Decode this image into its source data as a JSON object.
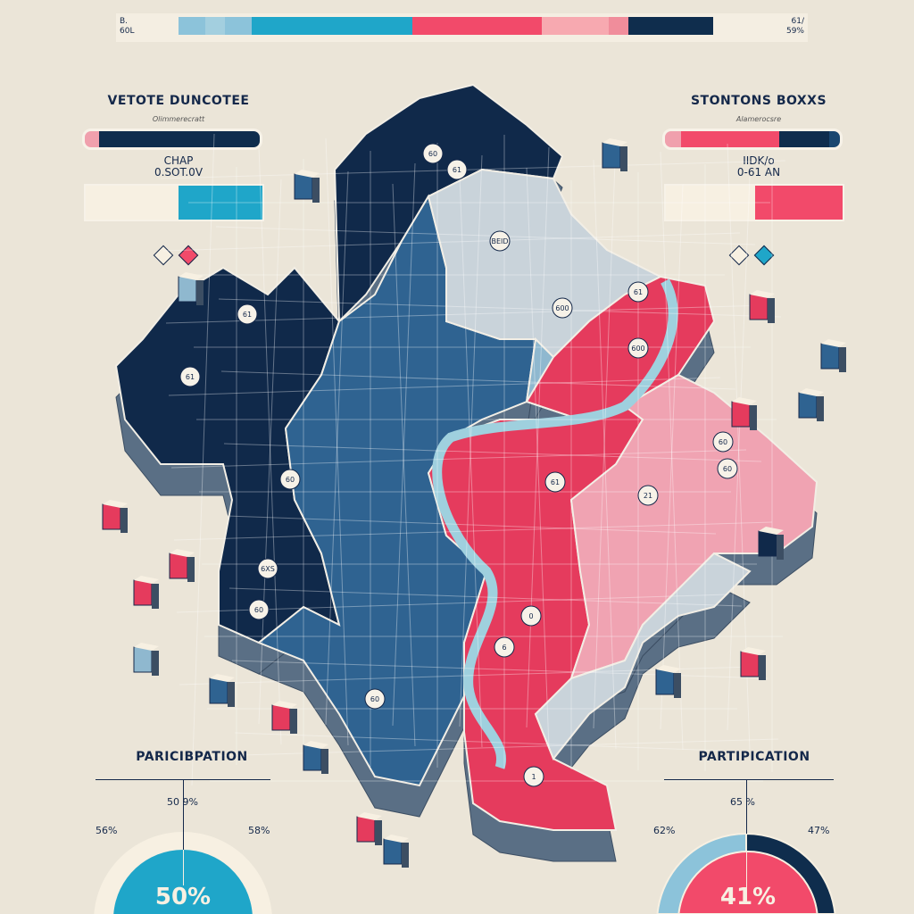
{
  "top_scale": {
    "left_label": [
      "B.",
      "60L"
    ],
    "right_label": [
      "61/",
      "59%"
    ],
    "segments": [
      "#8cc3da",
      "#a3cfdf",
      "#8cc3da",
      "#1fa6c9",
      "#f24a6a",
      "#f7a9b0",
      "#f08d9b",
      "#0f2d4d"
    ]
  },
  "left_panel": {
    "title": "VETOTE DUNCOTEE",
    "subtitle": "Olimmerecratt",
    "pill_colors": [
      "#f0a0ad",
      "#0f2d4d"
    ],
    "label_line1": "CHAP",
    "label_line2": "0.SOT.0V",
    "box_colors": [
      "#f7f0e2",
      "#1fa6c9"
    ],
    "diamonds": [
      "#f7f0e2",
      "#f24a6a"
    ]
  },
  "right_panel": {
    "title": "STONTONS BOXXS",
    "subtitle": "Alamerocsre",
    "pill_colors": [
      "#f0a0ad",
      "#f24a6a",
      "#0f2d4d",
      "#1a4770"
    ],
    "label_line1": "IIDK/o",
    "label_line2": "0-61 AN",
    "box_colors": [
      "#f7f0e2",
      "#f24a6a"
    ],
    "diamonds": [
      "#f7f0e2",
      "#1fa6c9"
    ]
  },
  "map": {
    "colors": {
      "navy": "#10294a",
      "blue": "#2f6391",
      "lightblue": "#8fb8cf",
      "grey": "#c9d3da",
      "red": "#e53b5d",
      "pink": "#f0a3b2",
      "river": "#9fd0de"
    },
    "markers": [
      "60",
      "61",
      "BEID",
      "600",
      "61",
      "600",
      "61",
      "61",
      "60",
      "6XS",
      "60",
      "60",
      "61",
      "21",
      "60",
      "60",
      "0",
      "6",
      "1"
    ]
  },
  "left_participation": {
    "title": "PARICIBPATION",
    "top_label": "50 9%",
    "left_label": "56%",
    "right_label": "58%",
    "center_value": "50%",
    "colors": {
      "outer": "#f7f0e2",
      "inner": "#1fa6c9"
    }
  },
  "right_participation": {
    "title": "PARTIPICATION",
    "top_label": "65 %",
    "left_label": "62%",
    "right_label": "47%",
    "center_value": "41%",
    "colors": {
      "outer_left": "#8cc3da",
      "outer_right": "#0f2d4d",
      "inner": "#f24a6a"
    }
  }
}
